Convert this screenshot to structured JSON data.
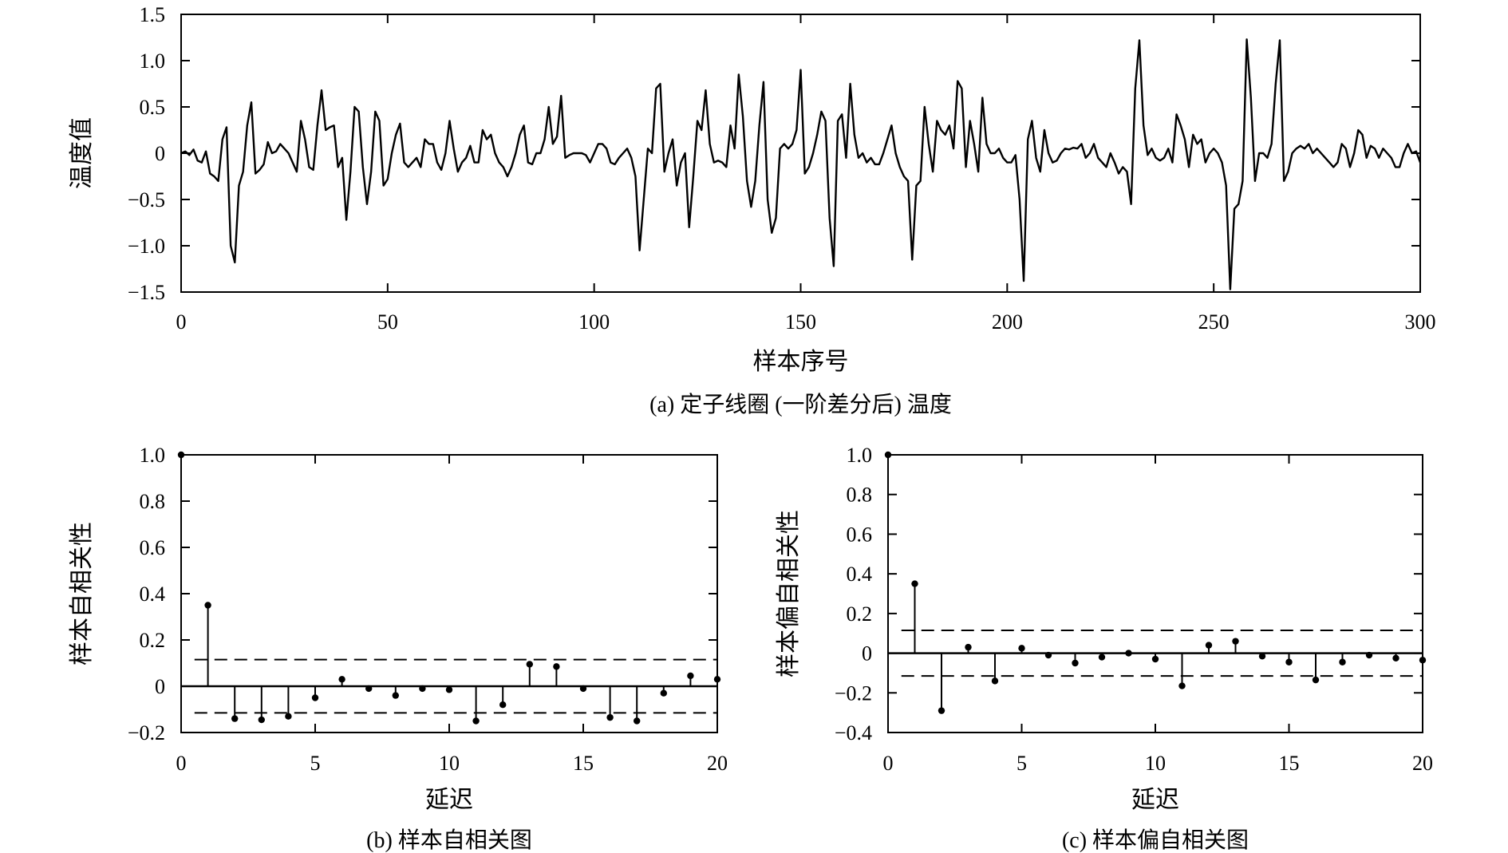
{
  "chart_data": [
    {
      "id": "a",
      "type": "line",
      "caption": "(a) 定子线圈 (一阶差分后) 温度",
      "xlabel": "样本序号",
      "ylabel": "温度值",
      "xlim": [
        0,
        300
      ],
      "ylim": [
        -1.5,
        1.5
      ],
      "xticks": [
        0,
        50,
        100,
        150,
        200,
        250,
        300
      ],
      "yticks": [
        -1.5,
        -1.0,
        -0.5,
        0,
        0.5,
        1.0,
        1.5
      ],
      "xtick_labels": [
        "0",
        "50",
        "100",
        "150",
        "200",
        "250",
        "300"
      ],
      "ytick_labels": [
        "−1.5",
        "−1.0",
        "−0.5",
        "0",
        "0.5",
        "1.0",
        "1.5"
      ],
      "grid": false,
      "color": "#000000",
      "keypoints": [
        [
          0,
          0.0
        ],
        [
          1,
          0.02
        ],
        [
          2,
          -0.02
        ],
        [
          3,
          0.04
        ],
        [
          4,
          -0.08
        ],
        [
          5,
          -0.1
        ],
        [
          6,
          0.02
        ],
        [
          7,
          -0.22
        ],
        [
          8,
          -0.25
        ],
        [
          9,
          -0.3
        ],
        [
          10,
          0.15
        ],
        [
          11,
          0.28
        ],
        [
          12,
          -1.0
        ],
        [
          13,
          -1.18
        ],
        [
          14,
          -0.35
        ],
        [
          15,
          -0.2
        ],
        [
          16,
          0.3
        ],
        [
          17,
          0.55
        ],
        [
          18,
          -0.22
        ],
        [
          19,
          -0.18
        ],
        [
          20,
          -0.12
        ],
        [
          21,
          0.12
        ],
        [
          22,
          0.0
        ],
        [
          23,
          0.02
        ],
        [
          24,
          0.1
        ],
        [
          25,
          0.05
        ],
        [
          26,
          0.0
        ],
        [
          27,
          -0.1
        ],
        [
          28,
          -0.2
        ],
        [
          29,
          0.35
        ],
        [
          30,
          0.15
        ],
        [
          31,
          -0.15
        ],
        [
          32,
          -0.18
        ],
        [
          33,
          0.3
        ],
        [
          34,
          0.68
        ],
        [
          35,
          0.25
        ],
        [
          36,
          0.28
        ],
        [
          37,
          0.3
        ],
        [
          38,
          -0.15
        ],
        [
          39,
          -0.05
        ],
        [
          40,
          -0.72
        ],
        [
          41,
          -0.2
        ],
        [
          42,
          0.5
        ],
        [
          43,
          0.45
        ],
        [
          44,
          -0.15
        ],
        [
          45,
          -0.55
        ],
        [
          46,
          -0.2
        ],
        [
          47,
          0.45
        ],
        [
          48,
          0.35
        ],
        [
          49,
          -0.35
        ],
        [
          50,
          -0.28
        ],
        [
          51,
          0.0
        ],
        [
          52,
          0.2
        ],
        [
          53,
          0.32
        ],
        [
          54,
          -0.1
        ],
        [
          55,
          -0.15
        ],
        [
          56,
          -0.1
        ],
        [
          57,
          -0.05
        ],
        [
          58,
          -0.15
        ],
        [
          59,
          0.15
        ],
        [
          60,
          0.1
        ],
        [
          61,
          0.1
        ],
        [
          62,
          -0.1
        ],
        [
          63,
          -0.18
        ],
        [
          64,
          0.0
        ],
        [
          65,
          0.35
        ],
        [
          66,
          0.05
        ],
        [
          67,
          -0.2
        ],
        [
          68,
          -0.1
        ],
        [
          69,
          -0.05
        ],
        [
          70,
          0.08
        ],
        [
          71,
          -0.1
        ],
        [
          72,
          -0.1
        ],
        [
          73,
          0.25
        ],
        [
          74,
          0.15
        ],
        [
          75,
          0.2
        ],
        [
          76,
          0.0
        ],
        [
          77,
          -0.1
        ],
        [
          78,
          -0.15
        ],
        [
          79,
          -0.25
        ],
        [
          80,
          -0.15
        ],
        [
          81,
          0.0
        ],
        [
          82,
          0.2
        ],
        [
          83,
          0.3
        ],
        [
          84,
          -0.1
        ],
        [
          85,
          -0.12
        ],
        [
          86,
          0.0
        ],
        [
          87,
          0.0
        ],
        [
          88,
          0.15
        ],
        [
          89,
          0.5
        ],
        [
          90,
          0.1
        ],
        [
          91,
          0.18
        ],
        [
          92,
          0.62
        ],
        [
          93,
          -0.05
        ],
        [
          94,
          -0.02
        ],
        [
          95,
          0.0
        ],
        [
          96,
          0.0
        ],
        [
          97,
          0.0
        ],
        [
          98,
          -0.02
        ],
        [
          99,
          -0.1
        ],
        [
          100,
          0.0
        ],
        [
          101,
          0.1
        ],
        [
          102,
          0.1
        ],
        [
          103,
          0.05
        ],
        [
          104,
          -0.1
        ],
        [
          105,
          -0.12
        ],
        [
          106,
          -0.05
        ],
        [
          107,
          0.0
        ],
        [
          108,
          0.05
        ],
        [
          109,
          -0.05
        ],
        [
          110,
          -0.25
        ],
        [
          111,
          -1.05
        ],
        [
          112,
          -0.5
        ],
        [
          113,
          0.05
        ],
        [
          114,
          0.0
        ],
        [
          115,
          0.7
        ],
        [
          116,
          0.75
        ],
        [
          117,
          -0.2
        ],
        [
          118,
          0.0
        ],
        [
          119,
          0.15
        ],
        [
          120,
          -0.35
        ],
        [
          121,
          -0.1
        ],
        [
          122,
          0.0
        ],
        [
          123,
          -0.8
        ],
        [
          124,
          -0.25
        ],
        [
          125,
          0.35
        ],
        [
          126,
          0.25
        ],
        [
          127,
          0.68
        ],
        [
          128,
          0.1
        ],
        [
          129,
          -0.1
        ],
        [
          130,
          -0.08
        ],
        [
          131,
          -0.1
        ],
        [
          132,
          -0.15
        ],
        [
          133,
          0.3
        ],
        [
          134,
          0.05
        ],
        [
          135,
          0.85
        ],
        [
          136,
          0.4
        ],
        [
          137,
          -0.3
        ],
        [
          138,
          -0.58
        ],
        [
          139,
          -0.3
        ],
        [
          140,
          0.3
        ],
        [
          141,
          0.77
        ],
        [
          142,
          -0.5
        ],
        [
          143,
          -0.86
        ],
        [
          144,
          -0.7
        ],
        [
          145,
          0.05
        ],
        [
          146,
          0.1
        ],
        [
          147,
          0.05
        ],
        [
          148,
          0.1
        ],
        [
          149,
          0.25
        ],
        [
          150,
          0.9
        ],
        [
          151,
          -0.22
        ],
        [
          152,
          -0.15
        ],
        [
          153,
          0.0
        ],
        [
          154,
          0.2
        ],
        [
          155,
          0.45
        ],
        [
          156,
          0.35
        ],
        [
          157,
          -0.7
        ],
        [
          158,
          -1.22
        ],
        [
          159,
          0.35
        ],
        [
          160,
          0.42
        ],
        [
          161,
          -0.05
        ],
        [
          162,
          0.75
        ],
        [
          163,
          0.2
        ],
        [
          164,
          -0.05
        ],
        [
          165,
          0.0
        ],
        [
          166,
          -0.1
        ],
        [
          167,
          -0.05
        ],
        [
          168,
          -0.12
        ],
        [
          169,
          -0.12
        ],
        [
          170,
          0.0
        ],
        [
          171,
          0.15
        ],
        [
          172,
          0.3
        ],
        [
          173,
          0.0
        ],
        [
          174,
          -0.15
        ],
        [
          175,
          -0.25
        ],
        [
          176,
          -0.3
        ],
        [
          177,
          -1.15
        ],
        [
          178,
          -0.35
        ],
        [
          179,
          -0.3
        ],
        [
          180,
          0.5
        ],
        [
          181,
          0.1
        ],
        [
          182,
          -0.2
        ],
        [
          183,
          0.35
        ],
        [
          184,
          0.25
        ],
        [
          185,
          0.2
        ],
        [
          186,
          0.3
        ],
        [
          187,
          0.05
        ],
        [
          188,
          0.78
        ],
        [
          189,
          0.7
        ],
        [
          190,
          -0.15
        ],
        [
          191,
          0.35
        ],
        [
          192,
          0.1
        ],
        [
          193,
          -0.2
        ],
        [
          194,
          0.6
        ],
        [
          195,
          0.1
        ],
        [
          196,
          0.0
        ],
        [
          197,
          0.0
        ],
        [
          198,
          0.05
        ],
        [
          199,
          -0.05
        ],
        [
          200,
          -0.1
        ],
        [
          201,
          -0.1
        ],
        [
          202,
          -0.02
        ],
        [
          203,
          -0.5
        ],
        [
          204,
          -1.38
        ],
        [
          205,
          0.15
        ],
        [
          206,
          0.35
        ],
        [
          207,
          -0.05
        ],
        [
          208,
          -0.2
        ],
        [
          209,
          0.25
        ],
        [
          210,
          0.0
        ],
        [
          211,
          -0.1
        ],
        [
          212,
          -0.08
        ],
        [
          213,
          0.0
        ],
        [
          214,
          0.05
        ],
        [
          215,
          0.04
        ],
        [
          216,
          0.06
        ],
        [
          217,
          0.05
        ],
        [
          218,
          0.1
        ],
        [
          219,
          -0.05
        ],
        [
          220,
          0.0
        ],
        [
          221,
          0.1
        ],
        [
          222,
          -0.05
        ],
        [
          223,
          -0.1
        ],
        [
          224,
          -0.15
        ],
        [
          225,
          0.0
        ],
        [
          226,
          -0.1
        ],
        [
          227,
          -0.22
        ],
        [
          228,
          -0.15
        ],
        [
          229,
          -0.2
        ],
        [
          230,
          -0.55
        ],
        [
          231,
          0.7
        ],
        [
          232,
          1.22
        ],
        [
          233,
          0.3
        ],
        [
          234,
          -0.02
        ],
        [
          235,
          0.05
        ],
        [
          236,
          -0.05
        ],
        [
          237,
          -0.08
        ],
        [
          238,
          -0.05
        ],
        [
          239,
          0.05
        ],
        [
          240,
          -0.1
        ],
        [
          241,
          0.42
        ],
        [
          242,
          0.3
        ],
        [
          243,
          0.15
        ],
        [
          244,
          -0.15
        ],
        [
          245,
          0.2
        ],
        [
          246,
          0.1
        ],
        [
          247,
          0.15
        ],
        [
          248,
          -0.1
        ],
        [
          249,
          0.0
        ],
        [
          250,
          0.05
        ],
        [
          251,
          0.0
        ],
        [
          252,
          -0.1
        ],
        [
          253,
          -0.35
        ],
        [
          254,
          -1.47
        ],
        [
          255,
          -0.6
        ],
        [
          256,
          -0.55
        ],
        [
          257,
          -0.3
        ],
        [
          258,
          1.23
        ],
        [
          259,
          0.6
        ],
        [
          260,
          -0.3
        ],
        [
          261,
          0.0
        ],
        [
          262,
          0.0
        ],
        [
          263,
          -0.05
        ],
        [
          264,
          0.1
        ],
        [
          265,
          0.75
        ],
        [
          266,
          1.22
        ],
        [
          267,
          -0.3
        ],
        [
          268,
          -0.2
        ],
        [
          269,
          0.0
        ],
        [
          270,
          0.05
        ],
        [
          271,
          0.08
        ],
        [
          272,
          0.05
        ],
        [
          273,
          0.1
        ],
        [
          274,
          0.0
        ],
        [
          275,
          0.05
        ],
        [
          276,
          0.0
        ],
        [
          277,
          -0.05
        ],
        [
          278,
          -0.1
        ],
        [
          279,
          -0.15
        ],
        [
          280,
          -0.1
        ],
        [
          281,
          0.1
        ],
        [
          282,
          0.05
        ],
        [
          283,
          -0.15
        ],
        [
          284,
          0.0
        ],
        [
          285,
          0.25
        ],
        [
          286,
          0.2
        ],
        [
          287,
          -0.05
        ],
        [
          288,
          0.08
        ],
        [
          289,
          0.05
        ],
        [
          290,
          -0.05
        ],
        [
          291,
          0.05
        ],
        [
          292,
          0.0
        ],
        [
          293,
          -0.05
        ],
        [
          294,
          -0.15
        ],
        [
          295,
          -0.15
        ],
        [
          296,
          0.0
        ],
        [
          297,
          0.1
        ],
        [
          298,
          0.0
        ],
        [
          299,
          0.02
        ],
        [
          300,
          -0.1
        ]
      ]
    },
    {
      "id": "b",
      "type": "stem",
      "caption": "(b) 样本自相关图",
      "xlabel": "延迟",
      "ylabel": "样本自相关性",
      "xlim": [
        0,
        20
      ],
      "ylim": [
        -0.2,
        1.0
      ],
      "xticks": [
        0,
        5,
        10,
        15,
        20
      ],
      "yticks": [
        -0.2,
        0,
        0.2,
        0.4,
        0.6,
        0.8,
        1.0
      ],
      "xtick_labels": [
        "0",
        "5",
        "10",
        "15",
        "20"
      ],
      "ytick_labels": [
        "−0.2",
        "0",
        "0.2",
        "0.4",
        "0.6",
        "0.8",
        "1.0"
      ],
      "confidence_bounds": [
        0.115,
        -0.115
      ],
      "grid": false,
      "color": "#000000",
      "x": [
        0,
        1,
        2,
        3,
        4,
        5,
        6,
        7,
        8,
        9,
        10,
        11,
        12,
        13,
        14,
        15,
        16,
        17,
        18,
        19,
        20
      ],
      "values": [
        1.0,
        0.35,
        -0.14,
        -0.145,
        -0.13,
        -0.05,
        0.03,
        -0.01,
        -0.04,
        -0.01,
        -0.015,
        -0.15,
        -0.08,
        0.095,
        0.085,
        -0.01,
        -0.135,
        -0.15,
        -0.03,
        0.045,
        0.03
      ]
    },
    {
      "id": "c",
      "type": "stem",
      "caption": "(c) 样本偏自相关图",
      "xlabel": "延迟",
      "ylabel": "样本偏自相关性",
      "xlim": [
        0,
        20
      ],
      "ylim": [
        -0.4,
        1.0
      ],
      "xticks": [
        0,
        5,
        10,
        15,
        20
      ],
      "yticks": [
        -0.4,
        -0.2,
        0,
        0.2,
        0.4,
        0.6,
        0.8,
        1.0
      ],
      "xtick_labels": [
        "0",
        "5",
        "10",
        "15",
        "20"
      ],
      "ytick_labels": [
        "−0.4",
        "−0.2",
        "0",
        "0.2",
        "0.4",
        "0.6",
        "0.8",
        "1.0"
      ],
      "confidence_bounds": [
        0.115,
        -0.115
      ],
      "grid": false,
      "color": "#000000",
      "x": [
        0,
        1,
        2,
        3,
        4,
        5,
        6,
        7,
        8,
        9,
        10,
        11,
        12,
        13,
        14,
        15,
        16,
        17,
        18,
        19,
        20
      ],
      "values": [
        1.0,
        0.35,
        -0.29,
        0.03,
        -0.14,
        0.025,
        -0.01,
        -0.05,
        -0.02,
        0.0,
        -0.03,
        -0.165,
        0.04,
        0.06,
        -0.015,
        -0.045,
        -0.135,
        -0.045,
        -0.01,
        -0.025,
        -0.035
      ]
    }
  ]
}
